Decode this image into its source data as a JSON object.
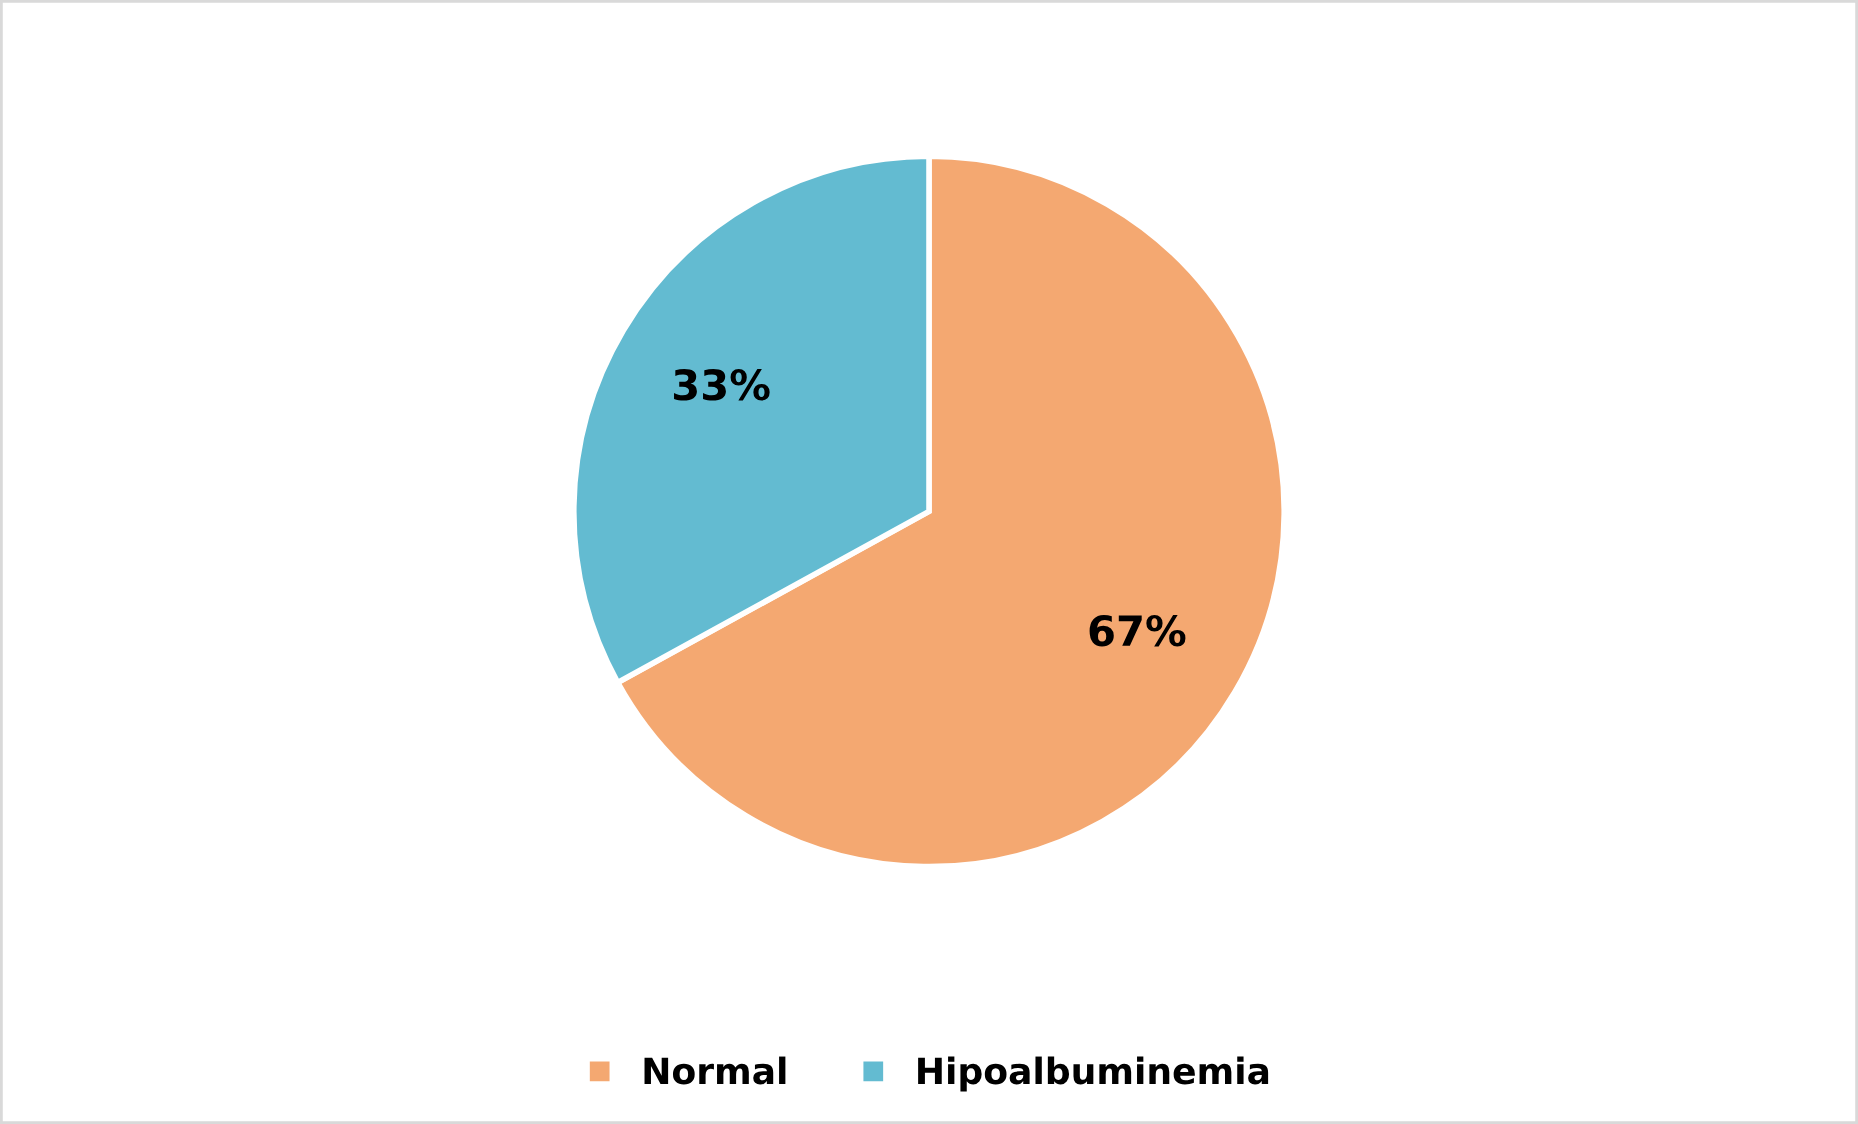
{
  "chart_data": {
    "type": "pie",
    "categories": [
      "Normal",
      "Hipoalbuminemia"
    ],
    "values": [
      67,
      33
    ],
    "colors": [
      "#f4a46a",
      "#5bb8cf"
    ],
    "value_labels": [
      "67%",
      "33%"
    ],
    "legend": "bottom"
  }
}
